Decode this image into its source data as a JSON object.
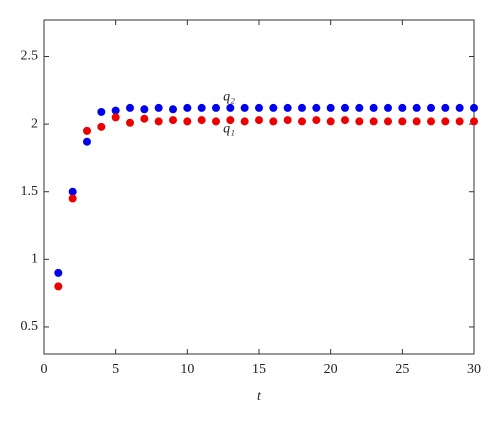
{
  "chart_data": {
    "type": "scatter",
    "x_label": "t",
    "x": [
      1,
      2,
      3,
      4,
      5,
      6,
      7,
      8,
      9,
      10,
      11,
      12,
      13,
      14,
      15,
      16,
      17,
      18,
      19,
      20,
      21,
      22,
      23,
      24,
      25,
      26,
      27,
      28,
      29,
      30
    ],
    "series": [
      {
        "name": "q₂",
        "color": "#0000ee",
        "label_x": 12.5,
        "label_y": 2.2,
        "values": [
          0.9,
          1.5,
          1.87,
          2.09,
          2.1,
          2.12,
          2.11,
          2.12,
          2.11,
          2.12,
          2.12,
          2.12,
          2.12,
          2.12,
          2.12,
          2.12,
          2.12,
          2.12,
          2.12,
          2.12,
          2.12,
          2.12,
          2.12,
          2.12,
          2.12,
          2.12,
          2.12,
          2.12,
          2.12,
          2.12
        ]
      },
      {
        "name": "q₁",
        "color": "#ee0000",
        "label_x": 12.5,
        "label_y": 1.96,
        "values": [
          0.8,
          1.45,
          1.95,
          1.98,
          2.05,
          2.01,
          2.04,
          2.02,
          2.03,
          2.02,
          2.03,
          2.02,
          2.03,
          2.02,
          2.03,
          2.02,
          2.03,
          2.02,
          2.03,
          2.02,
          2.03,
          2.02,
          2.02,
          2.02,
          2.02,
          2.02,
          2.02,
          2.02,
          2.02,
          2.02
        ]
      }
    ],
    "xlim": [
      0,
      30
    ],
    "xticks": [
      0,
      5,
      10,
      15,
      20,
      25,
      30
    ],
    "ylim": [
      0.3,
      2.77
    ],
    "yticks": [
      0.5,
      1,
      1.5,
      2,
      2.5
    ]
  }
}
